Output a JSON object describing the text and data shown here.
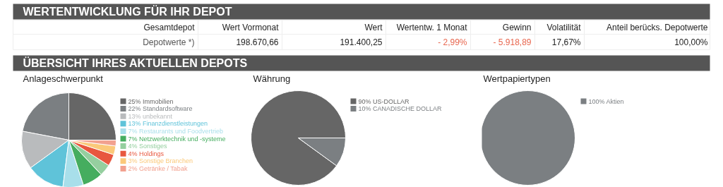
{
  "chart_data": [
    {
      "type": "other",
      "title": "WERTENTWICKLUNG FÜR IHR DEPOT",
      "annotations": [
        "Gesamtdepot",
        "Wert Vormonat",
        "Wert",
        "Wertentw. 1 Monat",
        "Gewinn",
        "Volatilität",
        "Anteil berücks. Depotwerte",
        "Depotwerte *)",
        "198.670,66",
        "191.400,25",
        "- 2,99%",
        "- 5.918,89",
        "17,67%",
        "100,00%"
      ],
      "colors": [
        "#222222",
        "#222222",
        "#222222",
        "#222222",
        "#222222",
        "#222222",
        "#222222",
        "#555555",
        "#222222",
        "#222222",
        "#e8674f",
        "#e8674f",
        "#222222",
        "#222222"
      ]
    },
    {
      "type": "other",
      "title": "ÜBERSICHT IHRES AKTUELLEN DEPOTS"
    },
    {
      "type": "pie",
      "title": "Anlageschwerpunkt",
      "legend": "right",
      "categories": [
        "25% Immobilien",
        "22% Standardsoftware",
        "13% unbekannt",
        "13% Finanzdienstleistungen",
        "7% Restaurants und Foodvertrieb",
        "7% Netzwerktechnik und -systeme",
        "4% Sonstiges",
        "4% Holdings",
        "3% Sonstige Branchen",
        "2% Getränke / Tabak"
      ],
      "values": [
        25,
        22,
        13,
        13,
        7,
        7,
        4,
        4,
        3,
        2
      ],
      "colors": [
        "#666666",
        "#7b7f82",
        "#b9bbbd",
        "#5fc3d9",
        "#a8dfea",
        "#45ad5f",
        "#95cf9f",
        "#e8573f",
        "#fbc97a",
        "#f2a18f"
      ]
    },
    {
      "type": "pie",
      "title": "Währung",
      "legend": "right",
      "categories": [
        "90% US-DOLLAR",
        "10% CANADISCHE DOLLAR"
      ],
      "values": [
        90,
        10
      ],
      "colors": [
        "#666666",
        "#7b7f82"
      ]
    },
    {
      "type": "pie",
      "title": "Wertpapiertypen",
      "legend": "right",
      "categories": [
        "100% Aktien"
      ],
      "values": [
        100
      ],
      "colors": [
        "#7b7f82"
      ]
    }
  ]
}
